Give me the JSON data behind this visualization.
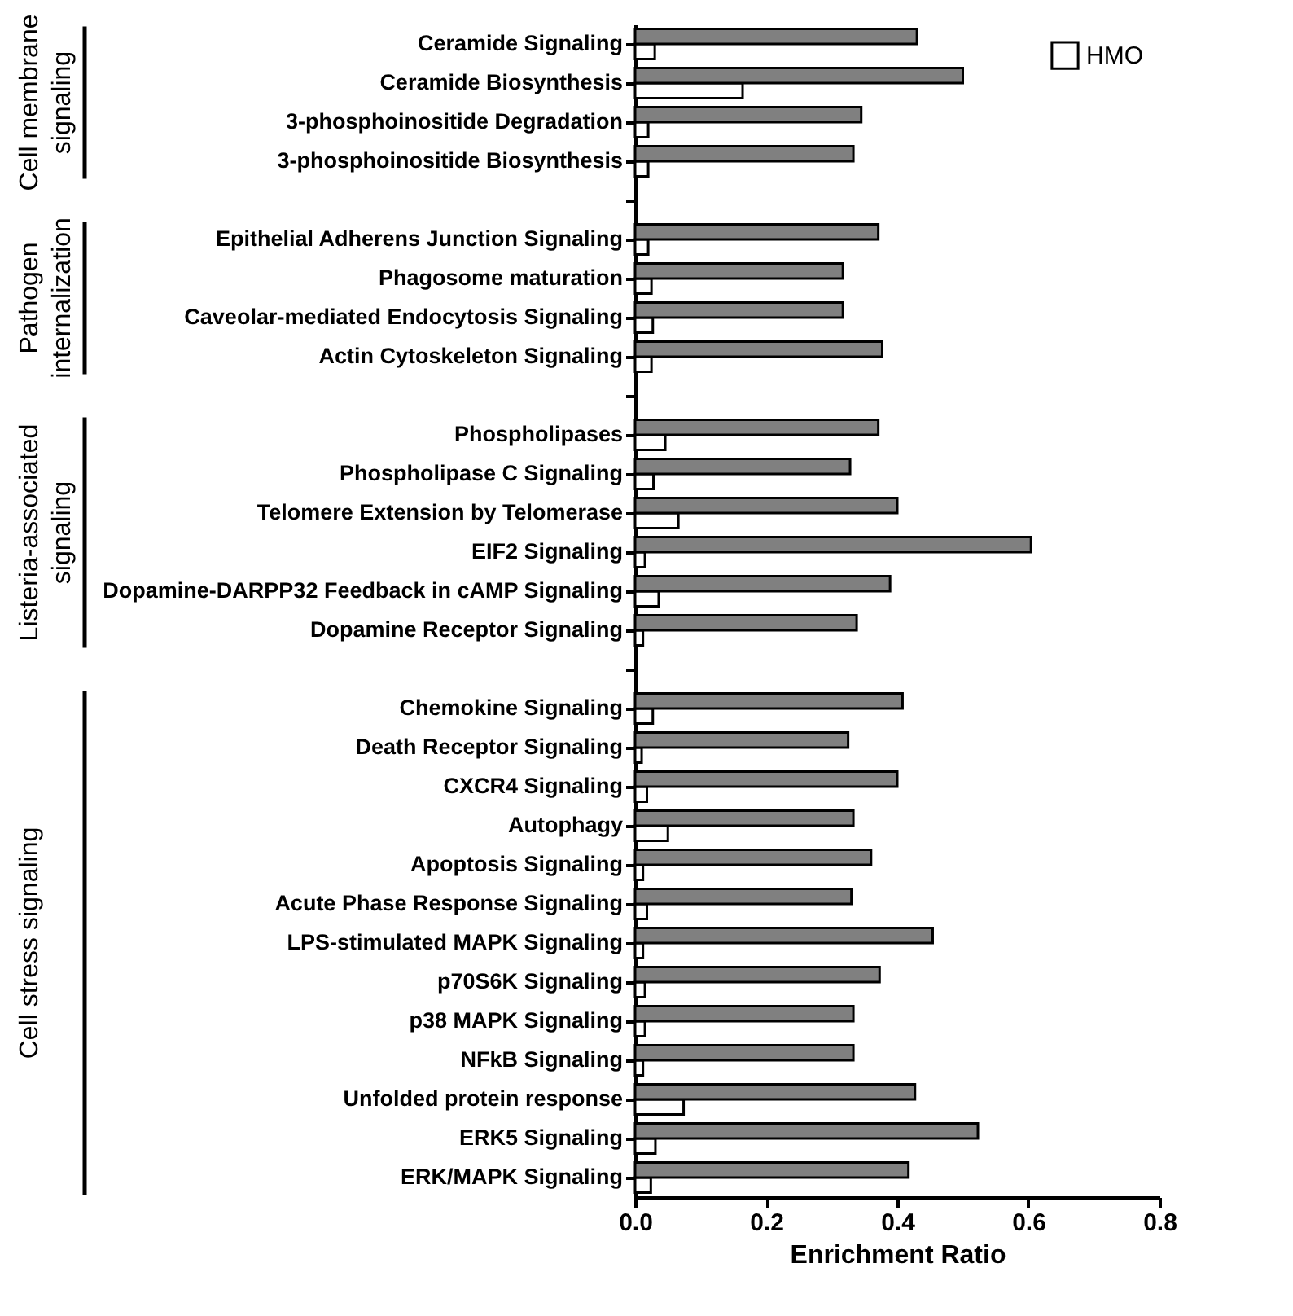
{
  "chart_data": {
    "type": "bar",
    "orientation": "horizontal",
    "xlabel": "Enrichment Ratio",
    "categories": [
      "Ceramide Signaling",
      "Ceramide Biosynthesis",
      "3-phosphoinositide Degradation",
      "3-phosphoinositide Biosynthesis",
      null,
      "Epithelial Adherens Junction Signaling",
      "Phagosome maturation",
      "Caveolar-mediated Endocytosis Signaling",
      "Actin Cytoskeleton Signaling",
      null,
      "Phospholipases",
      "Phospholipase C Signaling",
      "Telomere Extension by Telomerase",
      "EIF2 Signaling",
      "Dopamine-DARPP32 Feedback in cAMP Signaling",
      "Dopamine Receptor Signaling",
      null,
      "Chemokine Signaling",
      "Death Receptor Signaling",
      "CXCR4 Signaling",
      "Autophagy",
      "Apoptosis Signaling",
      "Acute Phase Response Signaling",
      "LPS-stimulated MAPK Signaling",
      "p70S6K Signaling",
      "p38 MAPK Signaling",
      "NFkB Signaling",
      "Unfolded protein response",
      "ERK5 Signaling",
      "ERK/MAPK Signaling"
    ],
    "series": [
      {
        "name": "HMO",
        "color": "#ffffff",
        "values": [
          0.03,
          0.164,
          0.02,
          0.02,
          null,
          0.02,
          0.025,
          0.027,
          0.025,
          null,
          0.046,
          0.028,
          0.066,
          0.015,
          0.036,
          0.012,
          null,
          0.027,
          0.01,
          0.018,
          0.05,
          0.012,
          0.018,
          0.012,
          0.015,
          0.015,
          0.012,
          0.074,
          0.031,
          0.024
        ]
      },
      {
        "color": "#808080",
        "values": [
          0.43,
          0.5,
          0.345,
          0.333,
          null,
          0.371,
          0.317,
          0.317,
          0.377,
          null,
          0.371,
          0.328,
          0.4,
          0.604,
          0.389,
          0.338,
          null,
          0.408,
          0.325,
          0.4,
          0.333,
          0.36,
          0.33,
          0.454,
          0.373,
          0.333,
          0.333,
          0.427,
          0.523,
          0.417
        ]
      }
    ],
    "xlim": [
      0,
      0.8
    ],
    "xticks": [
      {
        "value": 0,
        "label": "0.0"
      },
      0.2,
      0.4,
      0.6,
      0.8
    ],
    "legend": "top right",
    "grid": false,
    "annotations": [
      "Cell membrane signaling",
      "Pathogen internalization",
      "Listeria-associated signaling",
      "Cell stress signaling"
    ]
  }
}
